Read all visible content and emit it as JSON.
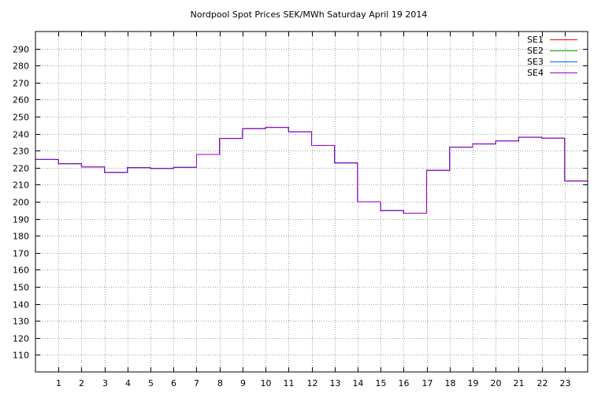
{
  "chart_data": {
    "type": "line",
    "step": true,
    "title": "Nordpool Spot Prices SEK/MWh Saturday April 19 2014",
    "xlabel": "",
    "ylabel": "",
    "x_ticks": [
      "1",
      "2",
      "3",
      "4",
      "5",
      "6",
      "7",
      "8",
      "9",
      "10",
      "11",
      "12",
      "13",
      "14",
      "15",
      "16",
      "17",
      "18",
      "19",
      "20",
      "21",
      "22",
      "23"
    ],
    "y_ticks": [
      110,
      120,
      130,
      140,
      150,
      160,
      170,
      180,
      190,
      200,
      210,
      220,
      230,
      240,
      250,
      260,
      270,
      280,
      290
    ],
    "xlim": [
      0,
      24
    ],
    "ylim": [
      100,
      300
    ],
    "grid": true,
    "legend_position": "top-right",
    "hours": [
      0,
      1,
      2,
      3,
      4,
      5,
      6,
      7,
      8,
      9,
      10,
      11,
      12,
      13,
      14,
      15,
      16,
      17,
      18,
      19,
      20,
      21,
      22,
      23
    ],
    "series": [
      {
        "name": "SE1",
        "color": "#ff0000",
        "values": [
          224.8,
          222.3,
          220.4,
          217.2,
          220.0,
          219.6,
          220.2,
          227.8,
          237.2,
          242.9,
          243.7,
          241.0,
          233.1,
          222.8,
          200.0,
          194.8,
          193.3,
          218.4,
          232.0,
          234.0,
          235.7,
          237.9,
          237.3,
          212.2
        ]
      },
      {
        "name": "SE2",
        "color": "#00a000",
        "values": [
          224.8,
          222.3,
          220.4,
          217.2,
          220.0,
          219.6,
          220.2,
          227.8,
          237.2,
          242.9,
          243.7,
          241.0,
          233.1,
          222.8,
          200.0,
          194.8,
          193.3,
          218.4,
          232.0,
          234.0,
          235.7,
          237.9,
          237.3,
          212.2
        ]
      },
      {
        "name": "SE3",
        "color": "#0060ff",
        "values": [
          224.8,
          222.3,
          220.4,
          217.2,
          220.0,
          219.6,
          220.2,
          227.8,
          237.2,
          242.9,
          243.7,
          241.0,
          233.1,
          222.8,
          200.0,
          194.8,
          193.3,
          218.4,
          232.0,
          234.0,
          235.7,
          237.9,
          237.3,
          212.2
        ]
      },
      {
        "name": "SE4",
        "color": "#a000c8",
        "values": [
          224.8,
          222.3,
          220.4,
          217.2,
          220.0,
          219.6,
          220.2,
          227.8,
          237.2,
          242.9,
          243.7,
          241.0,
          233.1,
          222.8,
          200.0,
          194.8,
          193.3,
          218.4,
          232.0,
          234.0,
          235.7,
          237.9,
          237.3,
          212.2
        ]
      }
    ]
  }
}
